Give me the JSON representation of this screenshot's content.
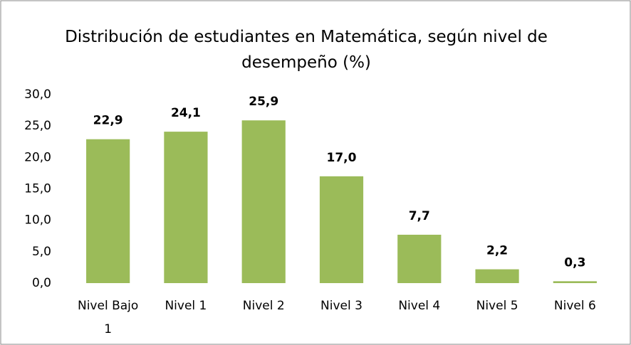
{
  "chart_data": {
    "type": "bar",
    "title": "Distribución de estudiantes en Matemática, según nivel de desempeño (%)",
    "categories": [
      "Nivel Bajo 1",
      "Nivel 1",
      "Nivel 2",
      "Nivel 3",
      "Nivel 4",
      "Nivel 5",
      "Nivel 6"
    ],
    "values": [
      22.9,
      24.1,
      25.9,
      17.0,
      7.7,
      2.2,
      0.3
    ],
    "value_labels": [
      "22,9",
      "24,1",
      "25,9",
      "17,0",
      "7,7",
      "2,2",
      "0,3"
    ],
    "color": "#9bbb59",
    "ylim": [
      0,
      30
    ],
    "yticks": [
      {
        "value": 0,
        "label": "0,0"
      },
      {
        "value": 5,
        "label": "5,0"
      },
      {
        "value": 10,
        "label": "10,0"
      },
      {
        "value": 15,
        "label": "15,0"
      },
      {
        "value": 20,
        "label": "20,0"
      },
      {
        "value": 25,
        "label": "25,0"
      },
      {
        "value": 30,
        "label": "30,0"
      }
    ],
    "grid": false
  }
}
